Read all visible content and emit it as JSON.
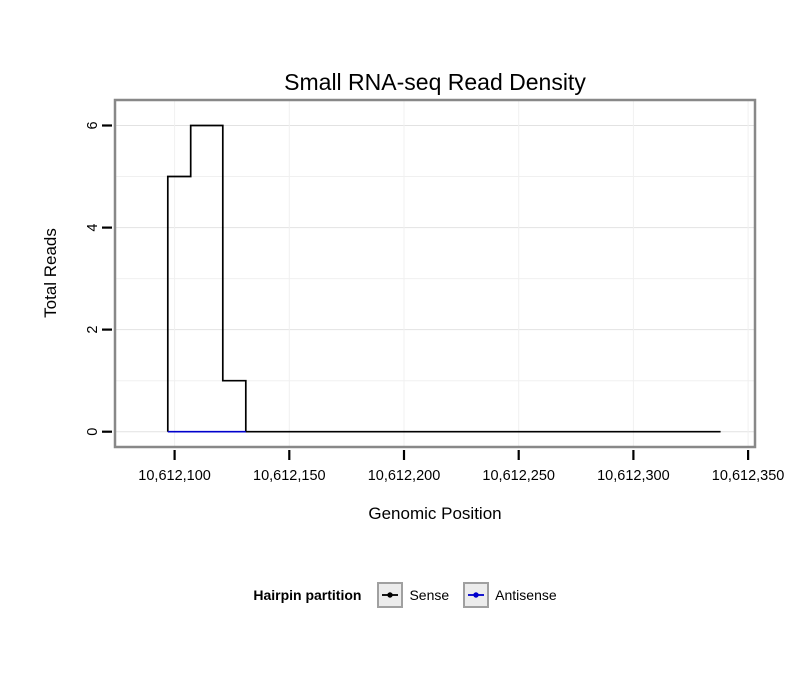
{
  "chart_data": {
    "type": "line",
    "title": "Small RNA-seq Read Density",
    "xlabel": "Genomic Position",
    "ylabel": "Total Reads",
    "xlim": [
      10612074,
      10612353
    ],
    "ylim": [
      0,
      6
    ],
    "grid": true,
    "xticks": [
      10612100,
      10612150,
      10612200,
      10612250,
      10612300,
      10612350
    ],
    "xtick_labels": [
      "10,612,100",
      "10,612,150",
      "10,612,200",
      "10,612,250",
      "10,612,300",
      "10,612,350"
    ],
    "yticks": [
      0,
      2,
      4,
      6
    ],
    "ytick_labels": [
      "0",
      "2",
      "4",
      "6"
    ],
    "legend": {
      "title": "Hairpin partition",
      "position": "bottom",
      "entries": [
        {
          "label": "Sense",
          "color": "#000000"
        },
        {
          "label": "Antisense",
          "color": "#0000cc"
        }
      ]
    },
    "series": [
      {
        "name": "Sense",
        "color": "#000000",
        "type": "step",
        "points": [
          [
            10612097,
            0
          ],
          [
            10612097,
            5
          ],
          [
            10612107,
            5
          ],
          [
            10612107,
            6
          ],
          [
            10612121,
            6
          ],
          [
            10612121,
            1
          ],
          [
            10612131,
            1
          ],
          [
            10612131,
            0
          ],
          [
            10612338,
            0
          ]
        ]
      },
      {
        "name": "Antisense",
        "color": "#0000cc",
        "type": "line",
        "points": [
          [
            10612097,
            0
          ],
          [
            10612131,
            0
          ]
        ]
      }
    ],
    "panel_border_color": "#888888",
    "gridline_major_color": "#e2e2e2",
    "gridline_minor_color": "#f0f0f0"
  }
}
